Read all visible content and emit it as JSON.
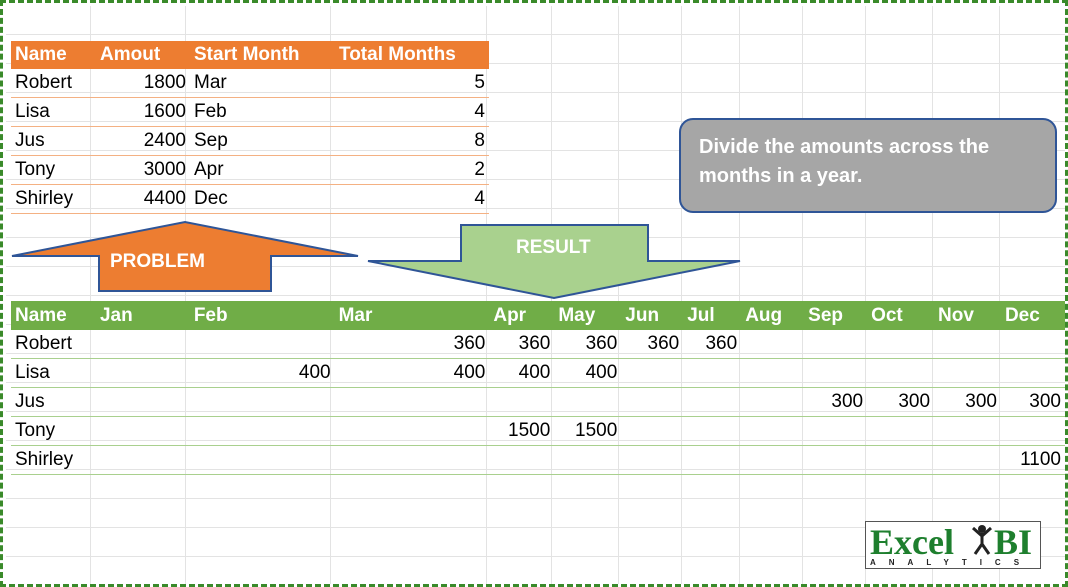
{
  "problem": {
    "headers": [
      "Name",
      "Amout",
      "Start Month",
      "Total Months"
    ],
    "rows": [
      [
        "Robert",
        "1800",
        "Mar",
        "5"
      ],
      [
        "Lisa",
        "1600",
        "Feb",
        "4"
      ],
      [
        "Jus",
        "2400",
        "Sep",
        "8"
      ],
      [
        "Tony",
        "3000",
        "Apr",
        "2"
      ],
      [
        "Shirley",
        "4400",
        "Dec",
        "4"
      ]
    ]
  },
  "note": "Divide the amounts across the months in a year.",
  "labels": {
    "problem": "PROBLEM",
    "result": "RESULT"
  },
  "result": {
    "headers": [
      "Name",
      "Jan",
      "Feb",
      "Mar",
      "Apr",
      "May",
      "Jun",
      "Jul",
      "Aug",
      "Sep",
      "Oct",
      "Nov",
      "Dec"
    ],
    "rows": [
      [
        "Robert",
        "",
        "",
        "360",
        "360",
        "360",
        "360",
        "360",
        "",
        "",
        "",
        "",
        ""
      ],
      [
        "Lisa",
        "",
        "400",
        "400",
        "400",
        "400",
        "",
        "",
        "",
        "",
        "",
        "",
        ""
      ],
      [
        "Jus",
        "",
        "",
        "",
        "",
        "",
        "",
        "",
        "",
        "300",
        "300",
        "300",
        "300"
      ],
      [
        "Tony",
        "",
        "",
        "",
        "1500",
        "1500",
        "",
        "",
        "",
        "",
        "",
        "",
        ""
      ],
      [
        "Shirley",
        "",
        "",
        "",
        "",
        "",
        "",
        "",
        "",
        "",
        "",
        "",
        "1100"
      ]
    ]
  },
  "logo": {
    "word": "Excel",
    "bi": "BI",
    "sub": "ANALYTICS"
  },
  "colors": {
    "problem_header": "#ed7d31",
    "result_header": "#70ad47",
    "note_bg": "#a6a6a6",
    "logo": "#1e7f2e"
  }
}
